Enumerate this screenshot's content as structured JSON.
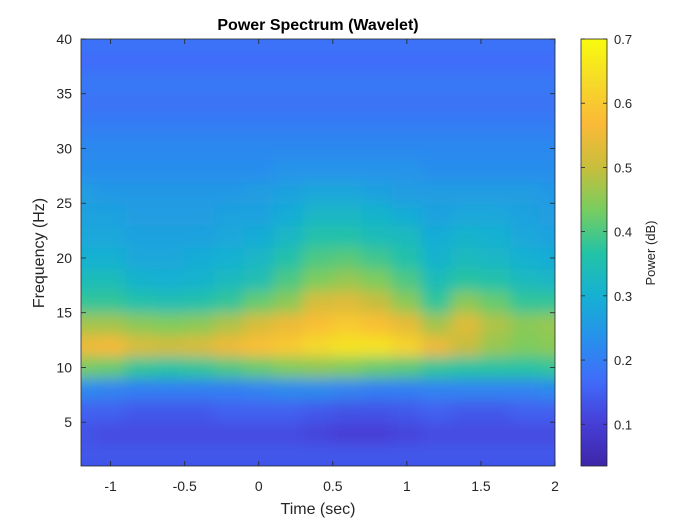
{
  "chart_data": {
    "type": "heatmap",
    "title": "Power Spectrum (Wavelet)",
    "xlabel": "Time (sec)",
    "ylabel": "Frequency (Hz)",
    "xlim": [
      -1.2,
      2.0
    ],
    "ylim": [
      1,
      40
    ],
    "x_ticks": [
      -1,
      -0.5,
      0,
      0.5,
      1,
      1.5,
      2
    ],
    "x_tick_labels": [
      "-1",
      "-0.5",
      "0",
      "0.5",
      "1",
      "1.5",
      "2"
    ],
    "y_ticks": [
      5,
      10,
      15,
      20,
      25,
      30,
      35,
      40
    ],
    "y_tick_labels": [
      "5",
      "10",
      "15",
      "20",
      "25",
      "30",
      "35",
      "40"
    ],
    "colorbar": {
      "label": "Power (dB)",
      "range": [
        0.035,
        0.7
      ],
      "ticks": [
        0.1,
        0.2,
        0.3,
        0.4,
        0.5,
        0.6,
        0.7
      ],
      "tick_labels": [
        "0.1",
        "0.2",
        "0.3",
        "0.4",
        "0.5",
        "0.6",
        "0.7"
      ],
      "colormap": "parula"
    },
    "grid": false,
    "x": [
      -1.2,
      -1.0,
      -0.8,
      -0.6,
      -0.4,
      -0.2,
      0.0,
      0.2,
      0.4,
      0.6,
      0.8,
      1.0,
      1.2,
      1.4,
      1.6,
      1.8,
      2.0
    ],
    "y": [
      2,
      4,
      6,
      8,
      10,
      12,
      14,
      16,
      18,
      20,
      22,
      24,
      26,
      28,
      30,
      32,
      34,
      36,
      38,
      40
    ],
    "z": [
      [
        0.14,
        0.14,
        0.14,
        0.14,
        0.14,
        0.14,
        0.14,
        0.14,
        0.14,
        0.14,
        0.14,
        0.14,
        0.14,
        0.14,
        0.14,
        0.14,
        0.14
      ],
      [
        0.13,
        0.12,
        0.12,
        0.12,
        0.12,
        0.12,
        0.12,
        0.12,
        0.11,
        0.1,
        0.1,
        0.11,
        0.12,
        0.12,
        0.12,
        0.12,
        0.12
      ],
      [
        0.15,
        0.15,
        0.14,
        0.14,
        0.14,
        0.15,
        0.15,
        0.15,
        0.14,
        0.13,
        0.13,
        0.14,
        0.15,
        0.14,
        0.14,
        0.15,
        0.15
      ],
      [
        0.22,
        0.21,
        0.2,
        0.2,
        0.2,
        0.2,
        0.21,
        0.22,
        0.22,
        0.21,
        0.2,
        0.2,
        0.21,
        0.21,
        0.21,
        0.21,
        0.22
      ],
      [
        0.43,
        0.42,
        0.38,
        0.37,
        0.38,
        0.4,
        0.42,
        0.44,
        0.45,
        0.44,
        0.42,
        0.41,
        0.38,
        0.37,
        0.37,
        0.37,
        0.38
      ],
      [
        0.55,
        0.56,
        0.52,
        0.51,
        0.52,
        0.55,
        0.58,
        0.6,
        0.63,
        0.65,
        0.65,
        0.62,
        0.55,
        0.5,
        0.46,
        0.44,
        0.45
      ],
      [
        0.47,
        0.47,
        0.45,
        0.44,
        0.45,
        0.48,
        0.52,
        0.55,
        0.58,
        0.6,
        0.58,
        0.54,
        0.47,
        0.53,
        0.48,
        0.45,
        0.46
      ],
      [
        0.38,
        0.38,
        0.36,
        0.35,
        0.36,
        0.38,
        0.42,
        0.45,
        0.52,
        0.53,
        0.5,
        0.45,
        0.38,
        0.45,
        0.42,
        0.38,
        0.38
      ],
      [
        0.34,
        0.34,
        0.31,
        0.3,
        0.31,
        0.33,
        0.35,
        0.4,
        0.44,
        0.46,
        0.44,
        0.4,
        0.34,
        0.37,
        0.36,
        0.33,
        0.32
      ],
      [
        0.3,
        0.3,
        0.28,
        0.28,
        0.29,
        0.3,
        0.32,
        0.36,
        0.4,
        0.41,
        0.39,
        0.36,
        0.31,
        0.33,
        0.32,
        0.3,
        0.29
      ],
      [
        0.28,
        0.28,
        0.27,
        0.27,
        0.27,
        0.28,
        0.29,
        0.32,
        0.36,
        0.36,
        0.34,
        0.33,
        0.29,
        0.31,
        0.3,
        0.28,
        0.27
      ],
      [
        0.27,
        0.27,
        0.26,
        0.26,
        0.26,
        0.27,
        0.27,
        0.29,
        0.32,
        0.32,
        0.31,
        0.29,
        0.27,
        0.28,
        0.28,
        0.27,
        0.26
      ],
      [
        0.26,
        0.25,
        0.25,
        0.25,
        0.25,
        0.25,
        0.26,
        0.27,
        0.28,
        0.28,
        0.27,
        0.26,
        0.26,
        0.26,
        0.26,
        0.26,
        0.25
      ],
      [
        0.23,
        0.23,
        0.23,
        0.23,
        0.23,
        0.23,
        0.23,
        0.24,
        0.24,
        0.24,
        0.24,
        0.24,
        0.23,
        0.23,
        0.23,
        0.23,
        0.23
      ],
      [
        0.22,
        0.22,
        0.22,
        0.22,
        0.22,
        0.22,
        0.22,
        0.22,
        0.22,
        0.22,
        0.22,
        0.22,
        0.22,
        0.22,
        0.22,
        0.22,
        0.22
      ],
      [
        0.2,
        0.2,
        0.2,
        0.2,
        0.2,
        0.2,
        0.2,
        0.2,
        0.2,
        0.2,
        0.2,
        0.2,
        0.2,
        0.2,
        0.2,
        0.2,
        0.2
      ],
      [
        0.18,
        0.18,
        0.18,
        0.18,
        0.18,
        0.18,
        0.18,
        0.18,
        0.18,
        0.18,
        0.18,
        0.18,
        0.18,
        0.18,
        0.18,
        0.18,
        0.18
      ],
      [
        0.19,
        0.19,
        0.19,
        0.19,
        0.19,
        0.19,
        0.19,
        0.19,
        0.19,
        0.19,
        0.19,
        0.19,
        0.19,
        0.19,
        0.19,
        0.19,
        0.19
      ],
      [
        0.17,
        0.17,
        0.17,
        0.17,
        0.17,
        0.17,
        0.17,
        0.17,
        0.17,
        0.17,
        0.17,
        0.17,
        0.17,
        0.17,
        0.17,
        0.17,
        0.17
      ],
      [
        0.18,
        0.18,
        0.18,
        0.18,
        0.18,
        0.18,
        0.18,
        0.18,
        0.18,
        0.18,
        0.18,
        0.18,
        0.18,
        0.18,
        0.18,
        0.18,
        0.18
      ]
    ]
  }
}
